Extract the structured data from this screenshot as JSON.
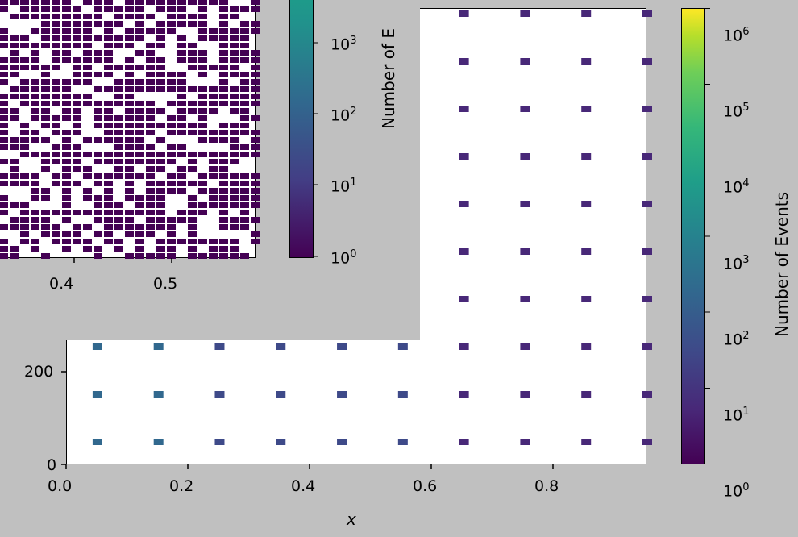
{
  "front_plot": {
    "x_axis_title": "x",
    "x_ticks": [
      "0.0",
      "0.2",
      "0.4",
      "0.6",
      "0.8"
    ],
    "y_ticks": [
      "0",
      "200"
    ],
    "colorbar_title": "Number of Events",
    "colorbar_ticks": [
      "10",
      "10",
      "10",
      "10",
      "10",
      "10",
      "10"
    ],
    "colorbar_exponents": [
      "0",
      "1",
      "2",
      "3",
      "4",
      "5",
      "6"
    ]
  },
  "back_plot": {
    "x_ticks": [
      "0.4",
      "0.5"
    ],
    "colorbar_title": "Number of E",
    "colorbar_ticks": [
      "10",
      "10",
      "10",
      "10"
    ],
    "colorbar_exponents": [
      "0",
      "1",
      "2",
      "3"
    ]
  },
  "chart_data": [
    {
      "type": "heatmap",
      "title": "",
      "xlabel": "x",
      "ylabel": "",
      "xlim": [
        0.0,
        0.95
      ],
      "x_centers": [
        0.05,
        0.15,
        0.25,
        0.35,
        0.45,
        0.55,
        0.65,
        0.75,
        0.85,
        0.95
      ],
      "colorbar": {
        "label": "Number of Events",
        "scale": "log",
        "range": [
          1,
          1000000
        ]
      },
      "colormap": "viridis"
    },
    {
      "type": "heatmap",
      "title": "",
      "xlabel": "",
      "ylabel": "",
      "colorbar": {
        "label": "Number of E",
        "scale": "log",
        "range": [
          1,
          1000
        ]
      },
      "colormap": "viridis"
    }
  ]
}
